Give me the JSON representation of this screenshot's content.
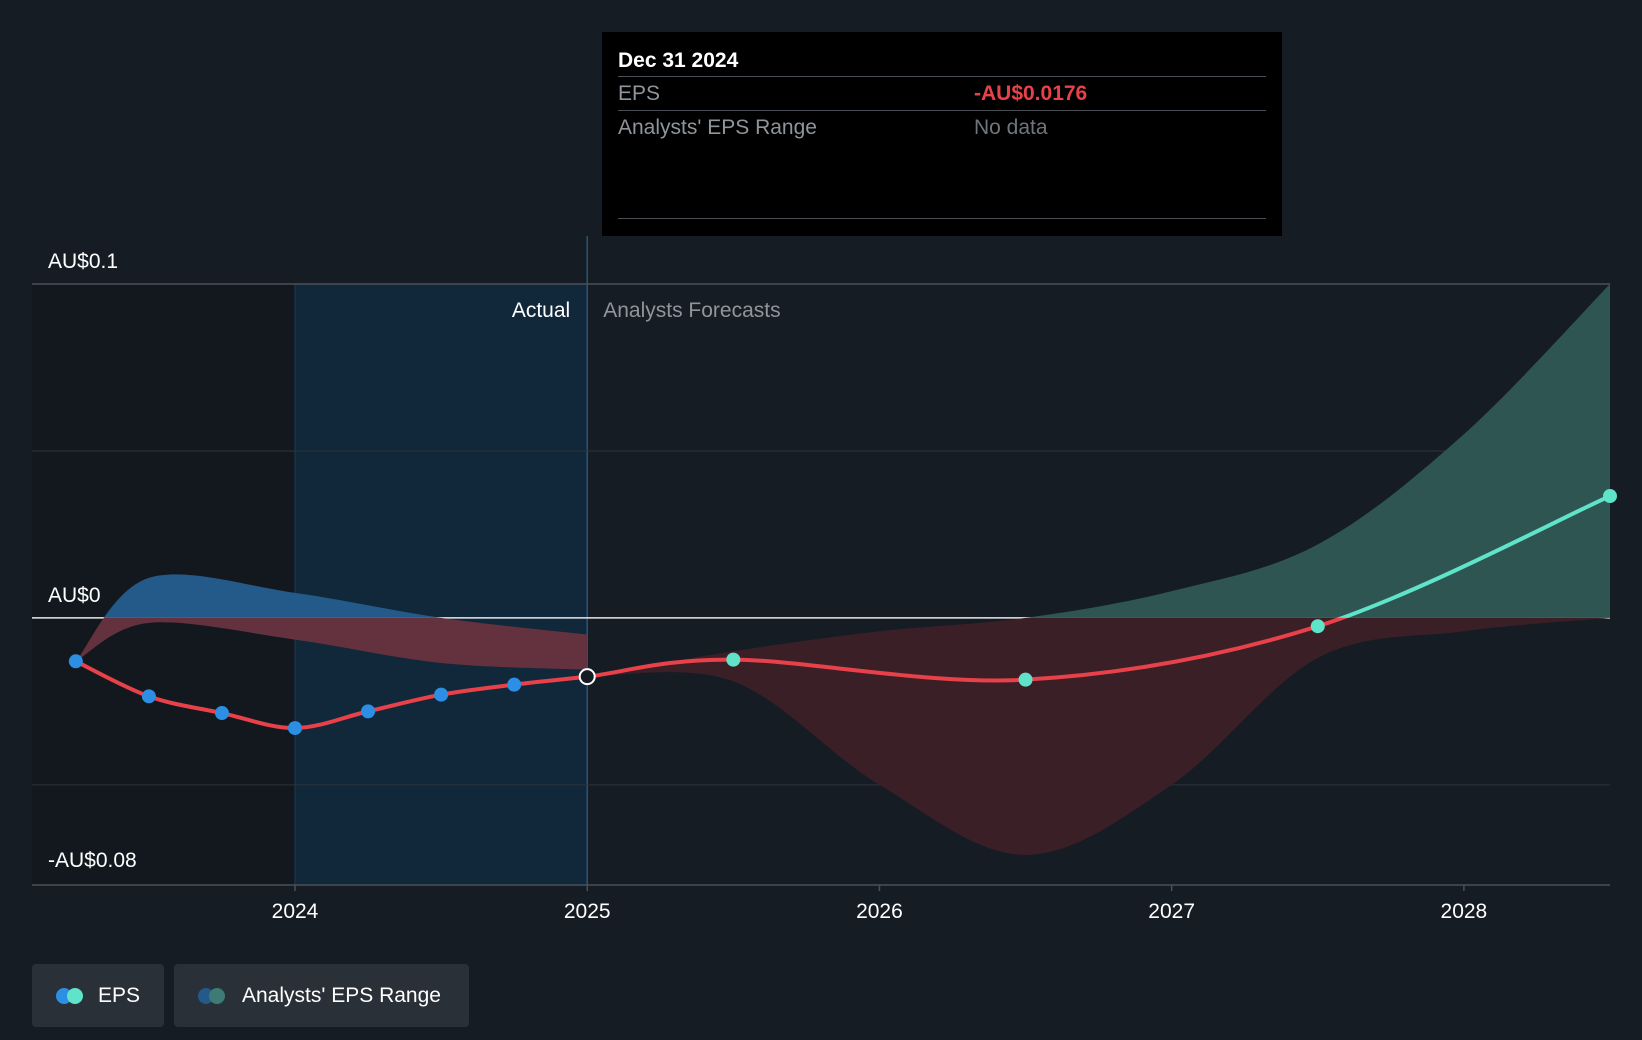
{
  "tooltip": {
    "date": "Dec 31 2024",
    "rows": [
      {
        "label": "EPS",
        "value": "-AU$0.0176"
      },
      {
        "label": "Analysts' EPS Range",
        "value": "No data"
      }
    ]
  },
  "regions": {
    "actual_label": "Actual",
    "forecast_label": "Analysts Forecasts"
  },
  "legend": {
    "eps_label": "EPS",
    "range_label": "Analysts' EPS Range"
  },
  "colors": {
    "background": "#161c24",
    "eps_line": "#e8414a",
    "actual_point": "#2d8fe3",
    "forecast_point": "#5fe3c9",
    "forecast_positive_line": "#5fe3c9",
    "range_positive_fill": "#2f5552",
    "range_negative_fill": "#3a1f27",
    "past_range_positive": "#235a8a",
    "past_range_negative": "#63323e",
    "actual_band": "#11273a"
  },
  "chart_data": {
    "type": "line",
    "title": "",
    "ylabel": "",
    "ylim": [
      -0.08,
      0.1
    ],
    "y_tick_labels": [
      {
        "value": 0.1,
        "label": "AU$0.1"
      },
      {
        "value": 0,
        "label": "AU$0"
      },
      {
        "value": -0.08,
        "label": "-AU$0.08"
      }
    ],
    "xlim": [
      2023.1,
      2028.5
    ],
    "x_ticks": [
      2024,
      2025,
      2026,
      2027,
      2028
    ],
    "actual_end": 2025.0,
    "series": [
      {
        "name": "EPS",
        "actual": [
          {
            "x": 2023.25,
            "y": -0.013
          },
          {
            "x": 2023.5,
            "y": -0.0235
          },
          {
            "x": 2023.75,
            "y": -0.0285
          },
          {
            "x": 2024.0,
            "y": -0.033
          },
          {
            "x": 2024.25,
            "y": -0.028
          },
          {
            "x": 2024.5,
            "y": -0.023
          },
          {
            "x": 2024.75,
            "y": -0.02
          },
          {
            "x": 2025.0,
            "y": -0.0176
          }
        ],
        "forecast": [
          {
            "x": 2025.0,
            "y": -0.0176
          },
          {
            "x": 2025.5,
            "y": -0.0125
          },
          {
            "x": 2026.5,
            "y": -0.0185
          },
          {
            "x": 2027.5,
            "y": -0.0025
          },
          {
            "x": 2028.5,
            "y": 0.0365
          }
        ]
      },
      {
        "name": "Analysts' EPS Range",
        "forecast_high": [
          {
            "x": 2025.0,
            "y": -0.0176
          },
          {
            "x": 2025.5,
            "y": -0.01
          },
          {
            "x": 2026.0,
            "y": -0.004
          },
          {
            "x": 2026.5,
            "y": 0.0
          },
          {
            "x": 2027.0,
            "y": 0.008
          },
          {
            "x": 2027.5,
            "y": 0.022
          },
          {
            "x": 2028.0,
            "y": 0.055
          },
          {
            "x": 2028.5,
            "y": 0.1
          }
        ],
        "forecast_low": [
          {
            "x": 2025.0,
            "y": -0.0176
          },
          {
            "x": 2025.5,
            "y": -0.019
          },
          {
            "x": 2026.0,
            "y": -0.05
          },
          {
            "x": 2026.5,
            "y": -0.071
          },
          {
            "x": 2027.0,
            "y": -0.05
          },
          {
            "x": 2027.5,
            "y": -0.012
          },
          {
            "x": 2028.0,
            "y": -0.004
          },
          {
            "x": 2028.5,
            "y": 0.0
          }
        ],
        "past_high": [
          {
            "x": 2023.25,
            "y": -0.013
          },
          {
            "x": 2023.5,
            "y": 0.012
          },
          {
            "x": 2024.0,
            "y": 0.0075
          },
          {
            "x": 2024.5,
            "y": 0.0
          },
          {
            "x": 2025.0,
            "y": -0.005
          }
        ],
        "past_low": [
          {
            "x": 2023.25,
            "y": -0.013
          },
          {
            "x": 2023.5,
            "y": -0.0015
          },
          {
            "x": 2024.0,
            "y": -0.0065
          },
          {
            "x": 2024.5,
            "y": -0.0135
          },
          {
            "x": 2025.0,
            "y": -0.0155
          }
        ]
      }
    ],
    "legend_position": "bottom-left"
  }
}
